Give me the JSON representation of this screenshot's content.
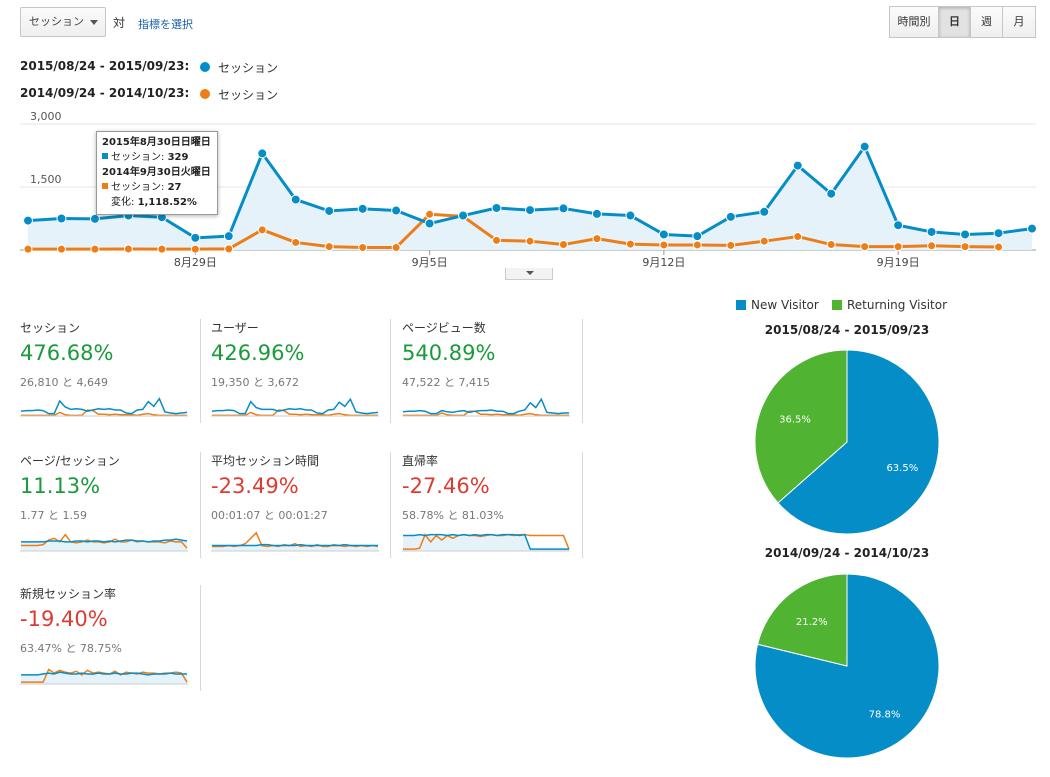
{
  "toolbar": {
    "metric_select": "セッション",
    "vs_label": "対",
    "select_metric_link": "指標を選択",
    "granularity": [
      {
        "label": "時間別",
        "active": false
      },
      {
        "label": "日",
        "active": true
      },
      {
        "label": "週",
        "active": false
      },
      {
        "label": "月",
        "active": false
      }
    ]
  },
  "legend": {
    "range1": "2015/08/24 - 2015/09/23:",
    "range2": "2014/09/24 - 2014/10/23:",
    "series1": "セッション",
    "series2": "セッション"
  },
  "colors": {
    "current": "#058dc7",
    "previous": "#ed7e17",
    "new_visitor": "#058dc7",
    "returning_visitor": "#50b432",
    "positive": "#1a9a3a",
    "negative": "#dc3b32"
  },
  "tooltip": {
    "date1": "2015年8月30日日曜日",
    "line1_label": "セッション:",
    "line1_value": "329",
    "date2": "2014年9月30日火曜日",
    "line2_label": "セッション:",
    "line2_value": "27",
    "change_label": "変化:",
    "change_value": "1,118.52%"
  },
  "chart_data": {
    "type": "line",
    "x": [
      "8/24",
      "8/25",
      "8/26",
      "8/27",
      "8/28",
      "8/29",
      "8/30",
      "8/31",
      "9/1",
      "9/2",
      "9/3",
      "9/4",
      "9/5",
      "9/6",
      "9/7",
      "9/8",
      "9/9",
      "9/10",
      "9/11",
      "9/12",
      "9/13",
      "9/14",
      "9/15",
      "9/16",
      "9/17",
      "9/18",
      "9/19",
      "9/20",
      "9/21",
      "9/22",
      "9/23"
    ],
    "x_tick_labels": [
      "8月29日",
      "9月5日",
      "9月12日",
      "9月19日"
    ],
    "y_tick_labels": [
      "3,000",
      "1,500"
    ],
    "ylim": [
      0,
      3000
    ],
    "series": [
      {
        "values": [
          700,
          750,
          740,
          820,
          780,
          290,
          329,
          2300,
          1200,
          930,
          980,
          940,
          630,
          820,
          1000,
          950,
          990,
          860,
          820,
          370,
          330,
          790,
          910,
          2010,
          1340,
          2460,
          590,
          430,
          370,
          400,
          510
        ]
      },
      {
        "values": [
          20,
          20,
          20,
          25,
          20,
          20,
          27,
          480,
          180,
          80,
          60,
          60,
          850,
          800,
          230,
          210,
          130,
          270,
          140,
          120,
          120,
          110,
          210,
          320,
          130,
          80,
          80,
          100,
          80,
          70,
          80
        ]
      }
    ]
  },
  "cards": [
    {
      "title": "セッション",
      "value": "476.68%",
      "sub": "26,810 と 4,649",
      "sign": "pos",
      "spark": {
        "a": [
          8,
          9,
          9,
          10,
          9,
          4,
          4,
          25,
          15,
          11,
          12,
          11,
          8,
          10,
          12,
          11,
          12,
          10,
          10,
          5,
          4,
          10,
          11,
          24,
          16,
          29,
          7,
          5,
          4,
          5,
          6
        ],
        "b": [
          1,
          1,
          1,
          1,
          1,
          1,
          1,
          6,
          2,
          1,
          1,
          1,
          10,
          9,
          3,
          3,
          2,
          3,
          2,
          2,
          2,
          1,
          3,
          4,
          2,
          1,
          1,
          1,
          1,
          1,
          1
        ],
        "max": 30,
        "fill": false
      }
    },
    {
      "title": "ユーザー",
      "value": "426.96%",
      "sub": "19,350 と 3,672",
      "sign": "pos",
      "spark": {
        "a": [
          8,
          9,
          9,
          10,
          9,
          4,
          4,
          24,
          14,
          11,
          11,
          11,
          8,
          10,
          12,
          11,
          12,
          10,
          10,
          5,
          4,
          10,
          11,
          23,
          16,
          28,
          7,
          5,
          4,
          5,
          6
        ],
        "b": [
          1,
          1,
          1,
          1,
          1,
          1,
          1,
          6,
          2,
          1,
          1,
          1,
          10,
          9,
          3,
          3,
          2,
          3,
          2,
          2,
          2,
          1,
          3,
          4,
          2,
          1,
          1,
          1,
          1,
          1,
          1
        ],
        "max": 30,
        "fill": false
      }
    },
    {
      "title": "ページビュー数",
      "value": "540.89%",
      "sub": "47,522 と 7,415",
      "sign": "pos",
      "spark": {
        "a": [
          7,
          8,
          8,
          9,
          8,
          4,
          4,
          9,
          7,
          6,
          8,
          9,
          6,
          8,
          9,
          9,
          10,
          8,
          8,
          4,
          4,
          8,
          10,
          22,
          14,
          28,
          6,
          5,
          4,
          5,
          5
        ],
        "b": [
          1,
          1,
          1,
          1,
          1,
          1,
          1,
          5,
          2,
          1,
          1,
          1,
          8,
          8,
          3,
          3,
          2,
          3,
          2,
          2,
          2,
          1,
          3,
          4,
          2,
          1,
          1,
          1,
          1,
          1,
          1
        ],
        "max": 30,
        "fill": false
      }
    },
    {
      "title": "ページ/セッション",
      "value": "11.13%",
      "sub": "1.77 と 1.59",
      "sign": "pos",
      "spark": {
        "a": [
          10,
          10,
          10,
          10,
          10,
          11,
          11,
          11,
          10,
          10,
          11,
          11,
          10,
          11,
          11,
          10,
          11,
          10,
          11,
          12,
          12,
          11,
          11,
          10,
          11,
          11,
          12,
          12,
          13,
          12,
          11
        ],
        "b": [
          6,
          6,
          6,
          6,
          7,
          12,
          14,
          10,
          18,
          10,
          9,
          10,
          12,
          10,
          10,
          9,
          10,
          13,
          10,
          10,
          12,
          10,
          11,
          10,
          10,
          10,
          9,
          11,
          10,
          10,
          3
        ],
        "max": 22,
        "fill": true
      }
    },
    {
      "title": "平均セッション時間",
      "value": "-23.49%",
      "sub": "00:01:07 と 00:01:27",
      "sign": "neg",
      "spark": {
        "a": [
          6,
          6,
          6,
          6,
          6,
          6,
          6,
          6,
          6,
          7,
          7,
          6,
          6,
          6,
          6,
          6,
          7,
          6,
          6,
          6,
          6,
          6,
          6,
          6,
          7,
          6,
          6,
          6,
          6,
          6,
          6
        ],
        "b": [
          5,
          5,
          5,
          6,
          5,
          6,
          8,
          14,
          20,
          6,
          5,
          6,
          5,
          7,
          6,
          8,
          5,
          6,
          5,
          7,
          5,
          5,
          7,
          6,
          5,
          6,
          5,
          6,
          5,
          6,
          5
        ],
        "max": 22,
        "fill": true
      }
    },
    {
      "title": "直帰率",
      "value": "-27.46%",
      "sub": "58.78% と 81.03%",
      "sign": "neg",
      "spark": {
        "a": [
          17,
          17,
          17,
          18,
          17,
          18,
          18,
          18,
          17,
          18,
          17,
          18,
          17,
          18,
          17,
          18,
          18,
          17,
          18,
          18,
          18,
          17,
          18,
          2,
          2,
          2,
          2,
          2,
          2,
          2,
          2
        ],
        "b": [
          2,
          2,
          2,
          3,
          18,
          10,
          17,
          12,
          17,
          14,
          17,
          18,
          17,
          17,
          16,
          17,
          18,
          17,
          17,
          18,
          17,
          18,
          18,
          17,
          17,
          17,
          17,
          17,
          17,
          17,
          2
        ],
        "max": 22,
        "fill": true
      }
    },
    {
      "title": "新規セッション率",
      "value": "-19.40%",
      "sub": "63.47% と 78.75%",
      "sign": "neg",
      "spark": {
        "a": [
          10,
          10,
          10,
          10,
          11,
          12,
          11,
          13,
          12,
          11,
          11,
          12,
          11,
          11,
          12,
          11,
          11,
          12,
          11,
          11,
          12,
          12,
          11,
          10,
          11,
          11,
          11,
          12,
          11,
          11,
          11
        ],
        "b": [
          2,
          2,
          2,
          2,
          2,
          16,
          12,
          15,
          13,
          12,
          14,
          10,
          15,
          12,
          13,
          12,
          11,
          14,
          10,
          13,
          12,
          11,
          13,
          12,
          12,
          11,
          12,
          12,
          13,
          12,
          2
        ],
        "max": 22,
        "fill": true
      }
    }
  ],
  "pies": {
    "legend": [
      "New Visitor",
      "Returning Visitor"
    ],
    "items": [
      {
        "title": "2015/08/24 - 2015/09/23",
        "new": 63.5,
        "returning": 36.5,
        "new_label": "63.5%",
        "returning_label": "36.5%"
      },
      {
        "title": "2014/09/24 - 2014/10/23",
        "new": 78.8,
        "returning": 21.2,
        "new_label": "78.8%",
        "returning_label": "21.2%"
      }
    ]
  }
}
